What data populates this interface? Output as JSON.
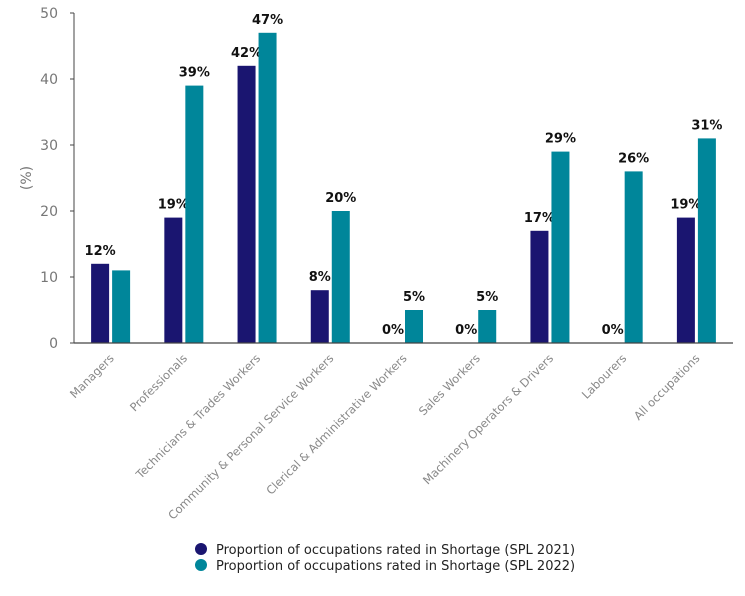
{
  "chart_data": {
    "type": "bar",
    "title": "",
    "xlabel": "",
    "ylabel": "(%)",
    "ylim": [
      0,
      50
    ],
    "yticks": [
      0,
      10,
      20,
      30,
      40,
      50
    ],
    "grid": false,
    "legend_position": "bottom",
    "categories": [
      "Managers",
      "Professionals",
      "Technicians & Trades Workers",
      "Community & Personal Service Workers",
      "Clerical & Administrative Workers",
      "Sales Workers",
      "Machinery Operators & Drivers",
      "Labourers",
      "All occupations"
    ],
    "series": [
      {
        "name": "Proportion of occupations rated in Shortage (SPL 2021)",
        "color": "#1a1570",
        "values": [
          12,
          19,
          42,
          8,
          0,
          0,
          17,
          0,
          19
        ],
        "labels": [
          "12%",
          "19%",
          "42%",
          "8%",
          "0%",
          "0%",
          "17%",
          "0%",
          "19%"
        ]
      },
      {
        "name": "Proportion of occupations rated in Shortage (SPL 2022)",
        "color": "#00869a",
        "values": [
          11,
          39,
          47,
          20,
          5,
          5,
          29,
          26,
          31
        ],
        "labels": [
          "",
          "39%",
          "47%",
          "20%",
          "5%",
          "5%",
          "29%",
          "26%",
          "31%"
        ]
      }
    ]
  }
}
